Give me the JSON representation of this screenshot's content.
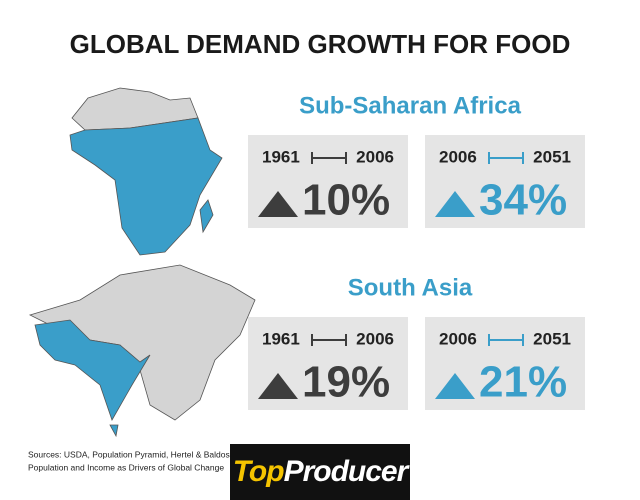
{
  "title": "GLOBAL DEMAND GROWTH FOR FOOD",
  "regions": [
    {
      "name": "Sub-Saharan Africa",
      "periods": [
        {
          "start": "1961",
          "end": "2006",
          "change": "10%"
        },
        {
          "start": "2006",
          "end": "2051",
          "change": "34%"
        }
      ]
    },
    {
      "name": "South Asia",
      "periods": [
        {
          "start": "1961",
          "end": "2006",
          "change": "19%"
        },
        {
          "start": "2006",
          "end": "2051",
          "change": "21%"
        }
      ]
    }
  ],
  "sources": [
    "Sources: USDA, Population Pyramid, Hertel & Baldos:",
    "Population and Income as Drivers of Global Change"
  ],
  "logo": {
    "top": "Top",
    "rest": "Producer"
  }
}
